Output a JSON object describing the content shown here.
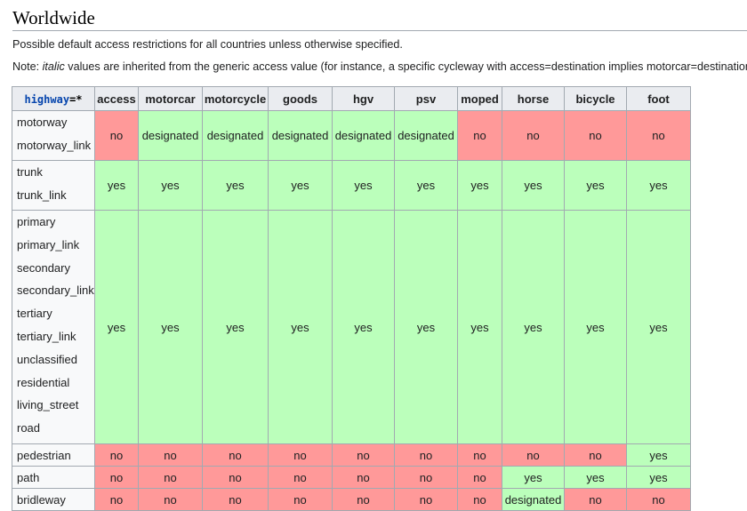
{
  "heading": "Worldwide",
  "intro": "Possible default access restrictions for all countries unless otherwise specified.",
  "note": {
    "prefix": "Note: ",
    "italic": "italic",
    "rest": " values are inherited from the generic access value (for instance, a specific cycleway with access=destination implies motorcar=destination, no"
  },
  "table": {
    "corner_key": "highway",
    "corner_val": "=*",
    "columns": [
      "access",
      "motorcar",
      "motorcycle",
      "goods",
      "hgv",
      "psv",
      "moped",
      "horse",
      "bicycle",
      "foot"
    ],
    "groups": [
      {
        "highways": [
          "motorway",
          "motorway_link"
        ],
        "values": [
          "no",
          "designated",
          "designated",
          "designated",
          "designated",
          "designated",
          "no",
          "no",
          "no",
          "no"
        ]
      },
      {
        "highways": [
          "trunk",
          "trunk_link"
        ],
        "values": [
          "yes",
          "yes",
          "yes",
          "yes",
          "yes",
          "yes",
          "yes",
          "yes",
          "yes",
          "yes"
        ]
      },
      {
        "highways": [
          "primary",
          "primary_link",
          "secondary",
          "secondary_link",
          "tertiary",
          "tertiary_link",
          "unclassified",
          "residential",
          "living_street",
          "road"
        ],
        "values": [
          "yes",
          "yes",
          "yes",
          "yes",
          "yes",
          "yes",
          "yes",
          "yes",
          "yes",
          "yes"
        ]
      },
      {
        "highways": [
          "pedestrian"
        ],
        "values": [
          "no",
          "no",
          "no",
          "no",
          "no",
          "no",
          "no",
          "no",
          "no",
          "yes"
        ]
      },
      {
        "highways": [
          "path"
        ],
        "values": [
          "no",
          "no",
          "no",
          "no",
          "no",
          "no",
          "no",
          "yes",
          "yes",
          "yes"
        ]
      },
      {
        "highways": [
          "bridleway"
        ],
        "values": [
          "no",
          "no",
          "no",
          "no",
          "no",
          "no",
          "no",
          "designated",
          "no",
          "no"
        ]
      }
    ]
  },
  "colors": {
    "no": "#ff9999",
    "yes": "#bbffbb",
    "designated": "#bbffbb",
    "header_bg": "#eaecf0"
  }
}
